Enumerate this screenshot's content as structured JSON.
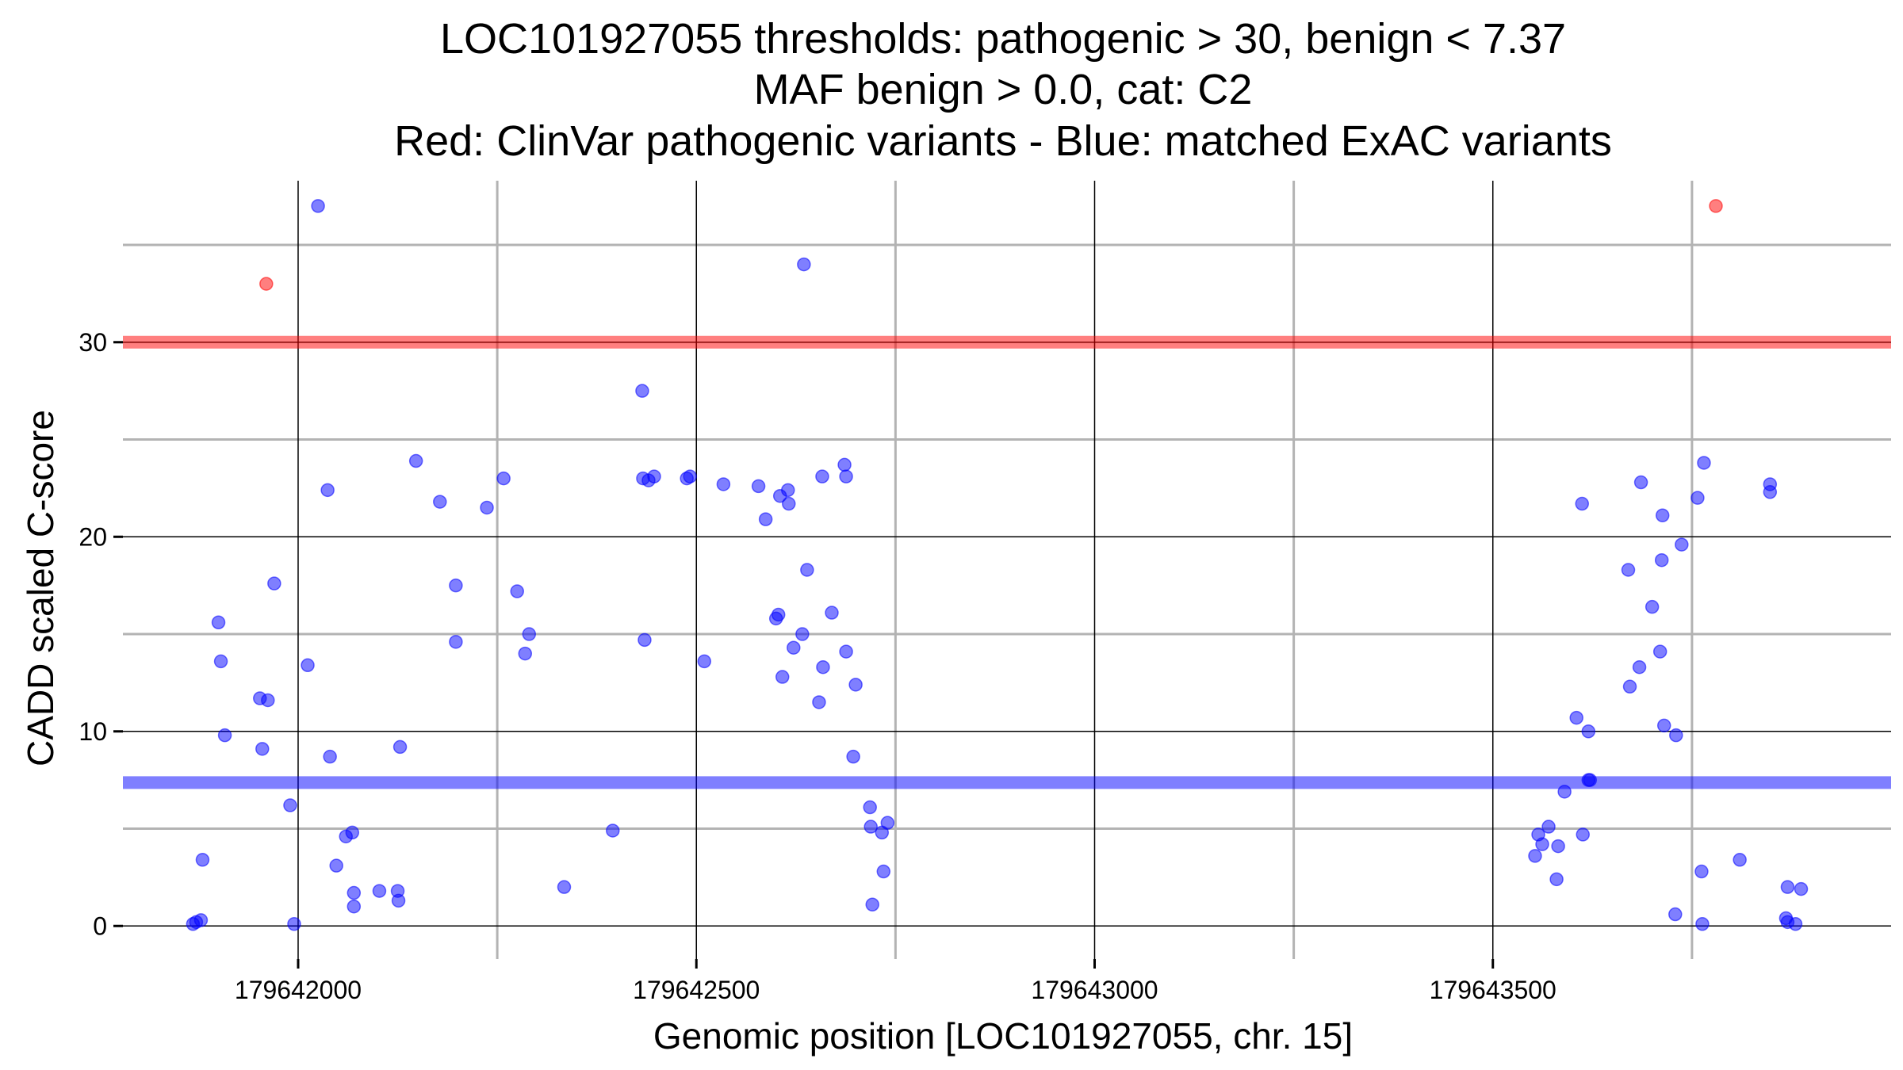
{
  "chart_data": {
    "type": "scatter",
    "title_lines": [
      "LOC101927055 thresholds: pathogenic > 30, benign < 7.37",
      "MAF benign > 0.0, cat: C2",
      "Red: ClinVar pathogenic variants - Blue: matched ExAC variants"
    ],
    "xlabel": "Genomic position [LOC101927055, chr. 15]",
    "ylabel": "CADD scaled C-score",
    "xlim": [
      179641780,
      179644000
    ],
    "ylim": [
      -1.7,
      38.3
    ],
    "x_major_ticks": [
      179642000,
      179642500,
      179643000,
      179643500
    ],
    "x_tick_labels": [
      "179642000",
      "179642500",
      "179643000",
      "179643500"
    ],
    "x_minor_lines": [
      179642250,
      179642750,
      179643250,
      179643750
    ],
    "y_major_ticks": [
      0,
      10,
      20,
      30
    ],
    "y_tick_labels": [
      "0",
      "10",
      "20",
      "30"
    ],
    "y_minor_lines": [
      5,
      15,
      25,
      35
    ],
    "thresholds": [
      {
        "name": "pathogenic",
        "value": 30,
        "color": "#ff0000"
      },
      {
        "name": "benign",
        "value": 7.37,
        "color": "#0000ff"
      }
    ],
    "colors": {
      "pathogenic": "#ff0000",
      "benign": "#0000ff",
      "major_grid": "#000000",
      "minor_grid": "#b3b3b3"
    },
    "series": [
      {
        "name": "ClinVar pathogenic variants",
        "color": "#ff0000",
        "points": [
          [
            179641960,
            33
          ],
          [
            179643780,
            37
          ]
        ]
      },
      {
        "name": "matched ExAC variants",
        "color": "#0000ff",
        "points": [
          [
            179642025,
            37
          ],
          [
            179642635,
            34
          ],
          [
            179641868,
            0.1
          ],
          [
            179641872,
            0.2
          ],
          [
            179641878,
            0.3
          ],
          [
            179641880,
            3.4
          ],
          [
            179641900,
            15.6
          ],
          [
            179641903,
            13.6
          ],
          [
            179641908,
            9.8
          ],
          [
            179641952,
            11.7
          ],
          [
            179641955,
            9.1
          ],
          [
            179641962,
            11.6
          ],
          [
            179641970,
            17.6
          ],
          [
            179641990,
            6.2
          ],
          [
            179641995,
            0.1
          ],
          [
            179642012,
            13.4
          ],
          [
            179642037,
            22.4
          ],
          [
            179642040,
            8.7
          ],
          [
            179642048,
            3.1
          ],
          [
            179642060,
            4.6
          ],
          [
            179642068,
            4.8
          ],
          [
            179642070,
            1.7
          ],
          [
            179642070,
            1.0
          ],
          [
            179642102,
            1.8
          ],
          [
            179642125,
            1.8
          ],
          [
            179642126,
            1.3
          ],
          [
            179642128,
            9.2
          ],
          [
            179642148,
            23.9
          ],
          [
            179642178,
            21.8
          ],
          [
            179642198,
            17.5
          ],
          [
            179642198,
            14.6
          ],
          [
            179642237,
            21.5
          ],
          [
            179642258,
            23.0
          ],
          [
            179642275,
            17.2
          ],
          [
            179642285,
            14.0
          ],
          [
            179642290,
            15.0
          ],
          [
            179642334,
            2.0
          ],
          [
            179642395,
            4.9
          ],
          [
            179642432,
            27.5
          ],
          [
            179642433,
            23.0
          ],
          [
            179642435,
            14.7
          ],
          [
            179642440,
            22.9
          ],
          [
            179642447,
            23.1
          ],
          [
            179642488,
            23.0
          ],
          [
            179642492,
            23.1
          ],
          [
            179642510,
            13.6
          ],
          [
            179642534,
            22.7
          ],
          [
            179642578,
            22.6
          ],
          [
            179642587,
            20.9
          ],
          [
            179642600,
            15.8
          ],
          [
            179642603,
            16.0
          ],
          [
            179642605,
            22.1
          ],
          [
            179642608,
            12.8
          ],
          [
            179642615,
            22.4
          ],
          [
            179642616,
            21.7
          ],
          [
            179642622,
            14.3
          ],
          [
            179642633,
            15.0
          ],
          [
            179642639,
            18.3
          ],
          [
            179642654,
            11.5
          ],
          [
            179642658,
            23.1
          ],
          [
            179642659,
            13.3
          ],
          [
            179642670,
            16.1
          ],
          [
            179642686,
            23.7
          ],
          [
            179642688,
            23.1
          ],
          [
            179642688,
            14.1
          ],
          [
            179642697,
            8.7
          ],
          [
            179642700,
            12.4
          ],
          [
            179642718,
            6.1
          ],
          [
            179642719,
            5.1
          ],
          [
            179642721,
            1.1
          ],
          [
            179642733,
            4.8
          ],
          [
            179642735,
            2.8
          ],
          [
            179642740,
            5.3
          ],
          [
            179643553,
            3.6
          ],
          [
            179643557,
            4.7
          ],
          [
            179643562,
            4.2
          ],
          [
            179643570,
            5.1
          ],
          [
            179643580,
            2.4
          ],
          [
            179643582,
            4.1
          ],
          [
            179643590,
            6.9
          ],
          [
            179643605,
            10.7
          ],
          [
            179643612,
            21.7
          ],
          [
            179643613,
            4.7
          ],
          [
            179643620,
            10.0
          ],
          [
            179643620,
            7.5
          ],
          [
            179643622,
            7.5
          ],
          [
            179643670,
            18.3
          ],
          [
            179643672,
            12.3
          ],
          [
            179643684,
            13.3
          ],
          [
            179643686,
            22.8
          ],
          [
            179643700,
            16.4
          ],
          [
            179643710,
            14.1
          ],
          [
            179643712,
            18.8
          ],
          [
            179643713,
            21.1
          ],
          [
            179643715,
            10.3
          ],
          [
            179643729,
            0.6
          ],
          [
            179643730,
            9.8
          ],
          [
            179643737,
            19.6
          ],
          [
            179643757,
            22.0
          ],
          [
            179643762,
            2.8
          ],
          [
            179643763,
            0.1
          ],
          [
            179643765,
            23.8
          ],
          [
            179643810,
            3.4
          ],
          [
            179643848,
            22.7
          ],
          [
            179643848,
            22.3
          ],
          [
            179643868,
            0.4
          ],
          [
            179643870,
            2.0
          ],
          [
            179643870,
            0.2
          ],
          [
            179643880,
            0.1
          ],
          [
            179643887,
            1.9
          ]
        ]
      }
    ]
  }
}
